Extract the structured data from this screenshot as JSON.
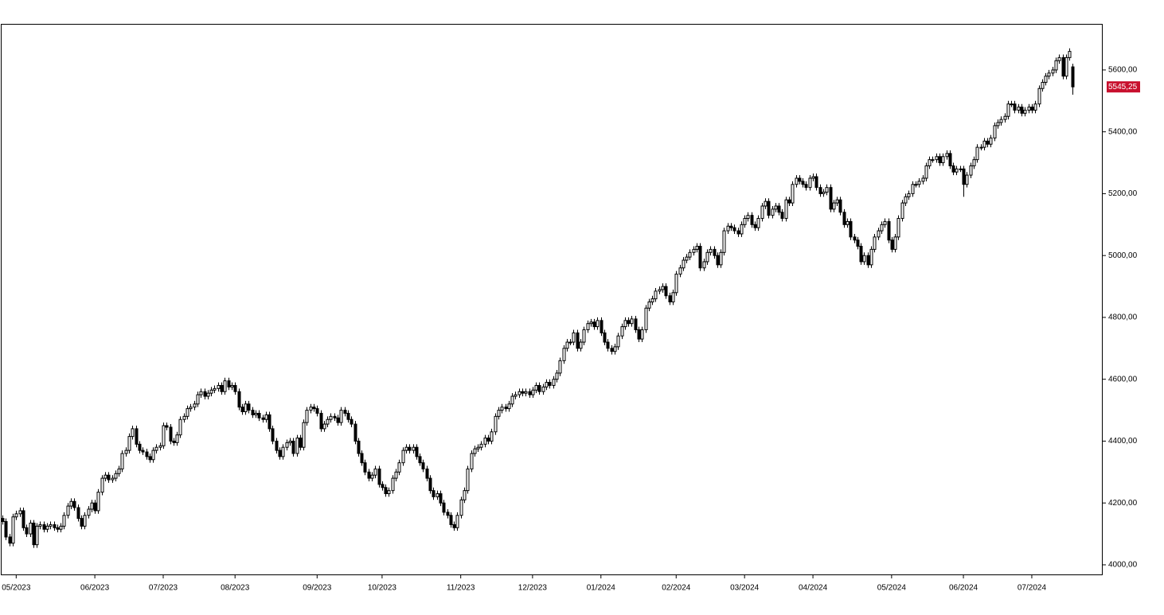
{
  "chart_data": {
    "type": "candlestick",
    "xlim": [
      0,
      322
    ],
    "xticks": [
      {
        "value": 4,
        "label": "05/2023"
      },
      {
        "value": 27,
        "label": "06/2023"
      },
      {
        "value": 47,
        "label": "07/2023"
      },
      {
        "value": 68,
        "label": "08/2023"
      },
      {
        "value": 92,
        "label": "09/2023"
      },
      {
        "value": 111,
        "label": "10/2023"
      },
      {
        "value": 134,
        "label": "11/2023"
      },
      {
        "value": 155,
        "label": "12/2023"
      },
      {
        "value": 175,
        "label": "01/2024"
      },
      {
        "value": 197,
        "label": "02/2024"
      },
      {
        "value": 217,
        "label": "03/2024"
      },
      {
        "value": 237,
        "label": "04/2024"
      },
      {
        "value": 260,
        "label": "05/2024"
      },
      {
        "value": 281,
        "label": "06/2024"
      },
      {
        "value": 301,
        "label": "07/2024"
      }
    ],
    "ylim": [
      3969,
      5749
    ],
    "yticks": [
      {
        "value": 4000,
        "label": "4000,00"
      },
      {
        "value": 4200,
        "label": "4200,00"
      },
      {
        "value": 4400,
        "label": "4400,00"
      },
      {
        "value": 4600,
        "label": "4600,00"
      },
      {
        "value": 4800,
        "label": "4800,00"
      },
      {
        "value": 5000,
        "label": "5000,00"
      },
      {
        "value": 5200,
        "label": "5200,00"
      },
      {
        "value": 5400,
        "label": "5400,00"
      },
      {
        "value": 5600,
        "label": "5600,00"
      }
    ],
    "up_color": "#ffffff",
    "down_color": "#000000",
    "last_label_color": "#c8102e",
    "last_close_label": "5545,25",
    "open": [
      4150,
      4140,
      4090,
      4070,
      4155,
      4165,
      4175,
      4120,
      4100,
      4135,
      4065,
      4125,
      4130,
      4115,
      4125,
      4130,
      4120,
      4115,
      4125,
      4160,
      4190,
      4205,
      4185,
      4150,
      4125,
      4160,
      4180,
      4200,
      4175,
      4235,
      4280,
      4290,
      4275,
      4280,
      4295,
      4310,
      4360,
      4370,
      4415,
      4440,
      4390,
      4370,
      4365,
      4350,
      4340,
      4370,
      4380,
      4385,
      4450,
      4445,
      4400,
      4395,
      4420,
      4470,
      4480,
      4505,
      4510,
      4520,
      4550,
      4560,
      4545,
      4555,
      4565,
      4570,
      4580,
      4560,
      4595,
      4575,
      4580,
      4560,
      4510,
      4495,
      4520,
      4500,
      4485,
      4490,
      4475,
      4470,
      4485,
      4440,
      4400,
      4370,
      4350,
      4380,
      4395,
      4400,
      4360,
      4410,
      4380,
      4460,
      4500,
      4510,
      4505,
      4490,
      4440,
      4455,
      4470,
      4480,
      4475,
      4460,
      4500,
      4490,
      4470,
      4455,
      4400,
      4360,
      4330,
      4300,
      4280,
      4290,
      4310,
      4260,
      4250,
      4230,
      4240,
      4280,
      4300,
      4330,
      4370,
      4380,
      4370,
      4380,
      4350,
      4330,
      4310,
      4280,
      4240,
      4220,
      4230,
      4200,
      4170,
      4160,
      4130,
      4120,
      4160,
      4210,
      4240,
      4310,
      4360,
      4375,
      4380,
      4390,
      4410,
      4400,
      4430,
      4480,
      4500,
      4510,
      4505,
      4520,
      4545,
      4550,
      4560,
      4555,
      4560,
      4550,
      4565,
      4580,
      4560,
      4575,
      4590,
      4580,
      4600,
      4620,
      4660,
      4700,
      4720,
      4720,
      4750,
      4700,
      4720,
      4760,
      4780,
      4785,
      4770,
      4790,
      4750,
      4720,
      4700,
      4690,
      4705,
      4740,
      4770,
      4790,
      4780,
      4795,
      4760,
      4730,
      4760,
      4830,
      4850,
      4860,
      4885,
      4890,
      4900,
      4870,
      4850,
      4880,
      4940,
      4960,
      4985,
      4995,
      5010,
      5020,
      5030,
      4960,
      4980,
      5010,
      5020,
      5000,
      4970,
      5010,
      5080,
      5095,
      5090,
      5080,
      5070,
      5100,
      5120,
      5130,
      5100,
      5090,
      5120,
      5160,
      5175,
      5130,
      5150,
      5160,
      5140,
      5120,
      5180,
      5170,
      5230,
      5250,
      5240,
      5230,
      5220,
      5250,
      5255,
      5220,
      5200,
      5205,
      5220,
      5150,
      5170,
      5180,
      5140,
      5100,
      5110,
      5060,
      5050,
      5030,
      4980,
      5000,
      4970,
      5020,
      5060,
      5080,
      5100,
      5110,
      5050,
      5020,
      5060,
      5120,
      5170,
      5190,
      5200,
      5230,
      5230,
      5240,
      5250,
      5290,
      5310,
      5310,
      5320,
      5300,
      5320,
      5330,
      5290,
      5270,
      5280,
      5280,
      5230,
      5260,
      5290,
      5310,
      5350,
      5350,
      5370,
      5360,
      5380,
      5420,
      5430,
      5440,
      5450,
      5490,
      5490,
      5470,
      5480,
      5460,
      5470,
      5480,
      5470,
      5490,
      5540,
      5560,
      5580,
      5590,
      5600,
      5630,
      5640,
      5580,
      5640,
      5610
    ],
    "high": [
      4160,
      4150,
      4100,
      4165,
      4175,
      4185,
      4185,
      4130,
      4145,
      4145,
      4135,
      4140,
      4140,
      4135,
      4140,
      4140,
      4130,
      4135,
      4170,
      4200,
      4215,
      4215,
      4195,
      4160,
      4170,
      4190,
      4210,
      4210,
      4245,
      4290,
      4300,
      4300,
      4290,
      4305,
      4320,
      4370,
      4380,
      4425,
      4450,
      4450,
      4400,
      4380,
      4375,
      4360,
      4380,
      4390,
      4395,
      4460,
      4460,
      4455,
      4410,
      4430,
      4480,
      4490,
      4515,
      4520,
      4530,
      4560,
      4570,
      4570,
      4565,
      4575,
      4580,
      4590,
      4590,
      4605,
      4605,
      4590,
      4590,
      4570,
      4520,
      4530,
      4530,
      4510,
      4500,
      4500,
      4485,
      4495,
      4495,
      4450,
      4410,
      4380,
      4390,
      4405,
      4410,
      4410,
      4420,
      4420,
      4470,
      4510,
      4520,
      4520,
      4515,
      4500,
      4465,
      4480,
      4490,
      4490,
      4485,
      4510,
      4510,
      4500,
      4480,
      4465,
      4410,
      4370,
      4340,
      4310,
      4300,
      4320,
      4320,
      4270,
      4260,
      4250,
      4290,
      4310,
      4340,
      4380,
      4390,
      4390,
      4390,
      4390,
      4360,
      4340,
      4320,
      4290,
      4250,
      4240,
      4240,
      4210,
      4180,
      4170,
      4140,
      4170,
      4220,
      4250,
      4320,
      4370,
      4385,
      4390,
      4400,
      4420,
      4420,
      4440,
      4490,
      4510,
      4520,
      4520,
      4530,
      4555,
      4560,
      4570,
      4570,
      4570,
      4570,
      4575,
      4590,
      4590,
      4585,
      4600,
      4600,
      4610,
      4630,
      4670,
      4710,
      4730,
      4730,
      4760,
      4760,
      4730,
      4770,
      4790,
      4795,
      4795,
      4800,
      4800,
      4760,
      4730,
      4710,
      4715,
      4750,
      4780,
      4800,
      4800,
      4805,
      4805,
      4770,
      4770,
      4840,
      4860,
      4870,
      4895,
      4900,
      4910,
      4910,
      4880,
      4890,
      4950,
      4970,
      4995,
      5005,
      5020,
      5030,
      5040,
      5040,
      4990,
      5020,
      5030,
      5030,
      5010,
      5020,
      5090,
      5105,
      5105,
      5100,
      5090,
      5110,
      5130,
      5140,
      5140,
      5110,
      5130,
      5170,
      5185,
      5185,
      5160,
      5170,
      5170,
      5150,
      5190,
      5190,
      5240,
      5260,
      5260,
      5250,
      5240,
      5260,
      5265,
      5265,
      5230,
      5215,
      5230,
      5230,
      5180,
      5190,
      5190,
      5150,
      5120,
      5120,
      5070,
      5060,
      5040,
      5010,
      5010,
      5030,
      5070,
      5090,
      5110,
      5120,
      5120,
      5060,
      5070,
      5130,
      5180,
      5200,
      5210,
      5240,
      5240,
      5250,
      5260,
      5300,
      5320,
      5320,
      5330,
      5330,
      5330,
      5340,
      5340,
      5300,
      5290,
      5290,
      5290,
      5270,
      5300,
      5320,
      5360,
      5360,
      5380,
      5380,
      5390,
      5430,
      5440,
      5450,
      5460,
      5500,
      5500,
      5500,
      5490,
      5490,
      5480,
      5490,
      5490,
      5500,
      5550,
      5570,
      5590,
      5600,
      5610,
      5640,
      5650,
      5650,
      5650,
      5670,
      5620
    ],
    "low": [
      4130,
      4080,
      4060,
      4060,
      4145,
      4155,
      4110,
      4090,
      4090,
      4055,
      4055,
      4115,
      4105,
      4105,
      4115,
      4110,
      4105,
      4105,
      4115,
      4150,
      4180,
      4175,
      4140,
      4115,
      4115,
      4150,
      4170,
      4165,
      4165,
      4225,
      4270,
      4265,
      4265,
      4270,
      4285,
      4300,
      4350,
      4360,
      4405,
      4380,
      4360,
      4355,
      4340,
      4330,
      4330,
      4360,
      4370,
      4375,
      4435,
      4390,
      4385,
      4385,
      4410,
      4460,
      4470,
      4495,
      4500,
      4510,
      4540,
      4535,
      4535,
      4545,
      4555,
      4560,
      4550,
      4550,
      4565,
      4565,
      4550,
      4500,
      4485,
      4485,
      4490,
      4475,
      4475,
      4465,
      4460,
      4460,
      4430,
      4390,
      4360,
      4340,
      4340,
      4370,
      4385,
      4350,
      4350,
      4370,
      4370,
      4450,
      4490,
      4495,
      4480,
      4430,
      4430,
      4445,
      4460,
      4465,
      4450,
      4450,
      4480,
      4460,
      4445,
      4390,
      4350,
      4320,
      4290,
      4270,
      4270,
      4280,
      4250,
      4240,
      4220,
      4220,
      4230,
      4270,
      4290,
      4320,
      4360,
      4360,
      4360,
      4340,
      4320,
      4300,
      4270,
      4230,
      4210,
      4210,
      4190,
      4160,
      4150,
      4120,
      4110,
      4110,
      4150,
      4200,
      4230,
      4300,
      4350,
      4365,
      4370,
      4380,
      4390,
      4390,
      4420,
      4470,
      4490,
      4495,
      4495,
      4510,
      4535,
      4540,
      4545,
      4545,
      4540,
      4540,
      4555,
      4550,
      4550,
      4565,
      4570,
      4570,
      4590,
      4610,
      4650,
      4690,
      4710,
      4710,
      4690,
      4690,
      4710,
      4750,
      4770,
      4760,
      4760,
      4740,
      4710,
      4690,
      4680,
      4680,
      4695,
      4730,
      4760,
      4770,
      4770,
      4750,
      4720,
      4720,
      4750,
      4820,
      4840,
      4850,
      4875,
      4880,
      4860,
      4840,
      4840,
      4870,
      4930,
      4950,
      4975,
      4985,
      5000,
      5010,
      4950,
      4950,
      4970,
      5000,
      4990,
      4960,
      4960,
      5000,
      5070,
      5080,
      5070,
      5060,
      5060,
      5090,
      5110,
      5090,
      5080,
      5080,
      5110,
      5150,
      5120,
      5120,
      5140,
      5130,
      5110,
      5110,
      5160,
      5160,
      5220,
      5230,
      5220,
      5210,
      5210,
      5240,
      5210,
      5190,
      5190,
      5195,
      5140,
      5140,
      5160,
      5130,
      5090,
      5090,
      5050,
      5040,
      5020,
      4970,
      4970,
      4960,
      4960,
      5010,
      5050,
      5070,
      5090,
      5040,
      5010,
      5010,
      5050,
      5110,
      5160,
      5180,
      5190,
      5220,
      5220,
      5230,
      5240,
      5280,
      5300,
      5300,
      5290,
      5290,
      5310,
      5280,
      5260,
      5260,
      5270,
      5190,
      5220,
      5250,
      5280,
      5300,
      5340,
      5340,
      5350,
      5350,
      5370,
      5410,
      5420,
      5430,
      5440,
      5480,
      5460,
      5460,
      5450,
      5450,
      5460,
      5460,
      5460,
      5480,
      5530,
      5550,
      5570,
      5580,
      5590,
      5620,
      5570,
      5570,
      5630,
      5520
    ],
    "close": [
      4140,
      4090,
      4070,
      4155,
      4165,
      4175,
      4120,
      4100,
      4135,
      4065,
      4125,
      4130,
      4115,
      4125,
      4130,
      4120,
      4115,
      4125,
      4160,
      4190,
      4205,
      4185,
      4150,
      4125,
      4160,
      4180,
      4200,
      4175,
      4235,
      4280,
      4290,
      4275,
      4280,
      4295,
      4310,
      4360,
      4370,
      4415,
      4440,
      4390,
      4370,
      4365,
      4350,
      4340,
      4370,
      4380,
      4385,
      4450,
      4445,
      4400,
      4395,
      4420,
      4470,
      4480,
      4505,
      4510,
      4520,
      4550,
      4560,
      4545,
      4555,
      4565,
      4570,
      4580,
      4560,
      4595,
      4575,
      4580,
      4560,
      4510,
      4495,
      4520,
      4500,
      4485,
      4490,
      4475,
      4470,
      4485,
      4440,
      4400,
      4370,
      4350,
      4380,
      4395,
      4400,
      4360,
      4410,
      4380,
      4460,
      4500,
      4510,
      4505,
      4490,
      4440,
      4455,
      4470,
      4480,
      4475,
      4460,
      4500,
      4490,
      4470,
      4455,
      4400,
      4360,
      4330,
      4300,
      4280,
      4290,
      4310,
      4260,
      4250,
      4230,
      4240,
      4280,
      4300,
      4330,
      4370,
      4380,
      4370,
      4380,
      4350,
      4330,
      4310,
      4280,
      4240,
      4220,
      4230,
      4200,
      4170,
      4160,
      4130,
      4120,
      4160,
      4210,
      4240,
      4310,
      4360,
      4375,
      4380,
      4390,
      4410,
      4400,
      4430,
      4480,
      4500,
      4510,
      4505,
      4520,
      4545,
      4550,
      4560,
      4555,
      4560,
      4550,
      4565,
      4580,
      4560,
      4575,
      4590,
      4580,
      4600,
      4620,
      4660,
      4700,
      4720,
      4720,
      4750,
      4700,
      4720,
      4760,
      4780,
      4785,
      4770,
      4790,
      4750,
      4720,
      4700,
      4690,
      4705,
      4740,
      4770,
      4790,
      4780,
      4795,
      4760,
      4730,
      4760,
      4830,
      4850,
      4860,
      4885,
      4890,
      4900,
      4870,
      4850,
      4880,
      4940,
      4960,
      4985,
      4995,
      5010,
      5020,
      5030,
      4960,
      4980,
      5010,
      5020,
      5000,
      4970,
      5010,
      5080,
      5095,
      5090,
      5080,
      5070,
      5100,
      5120,
      5130,
      5100,
      5090,
      5120,
      5160,
      5175,
      5130,
      5150,
      5160,
      5140,
      5120,
      5180,
      5170,
      5230,
      5250,
      5240,
      5230,
      5220,
      5250,
      5255,
      5220,
      5200,
      5205,
      5220,
      5150,
      5170,
      5180,
      5140,
      5100,
      5110,
      5060,
      5050,
      5030,
      4980,
      5000,
      4970,
      5020,
      5060,
      5080,
      5100,
      5110,
      5050,
      5020,
      5060,
      5120,
      5170,
      5190,
      5200,
      5230,
      5230,
      5240,
      5250,
      5290,
      5310,
      5310,
      5320,
      5300,
      5320,
      5330,
      5290,
      5270,
      5280,
      5280,
      5230,
      5260,
      5290,
      5310,
      5350,
      5350,
      5370,
      5360,
      5380,
      5420,
      5430,
      5440,
      5450,
      5490,
      5490,
      5470,
      5480,
      5460,
      5470,
      5480,
      5470,
      5490,
      5540,
      5560,
      5580,
      5590,
      5600,
      5630,
      5640,
      5580,
      5640,
      5660,
      5545.25
    ]
  }
}
